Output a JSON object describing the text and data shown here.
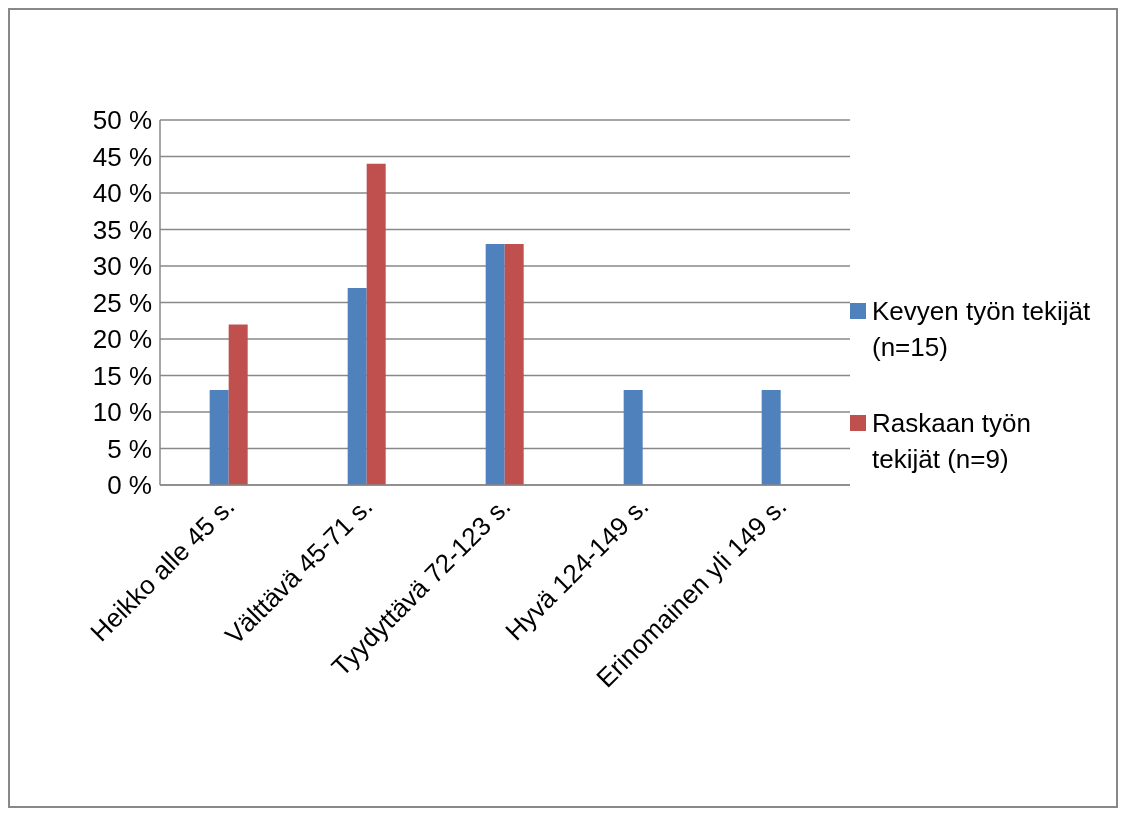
{
  "chart_data": {
    "type": "bar",
    "categories": [
      "Heikko alle 45 s.",
      "Välttävä 45-71 s.",
      "Tyydyttävä 72-123 s.",
      "Hyvä 124-149 s.",
      "Erinomainen yli 149 s."
    ],
    "series": [
      {
        "name": "Kevyen työn tekijät (n=15)",
        "color": "#4f81bd",
        "values": [
          13,
          27,
          33,
          13,
          13
        ]
      },
      {
        "name": "Raskaan työn tekijät (n=9)",
        "color": "#c0504d",
        "values": [
          22,
          44,
          33,
          0,
          0
        ]
      }
    ],
    "ylim": [
      0,
      50
    ],
    "yticks": [
      {
        "value": 0,
        "label": "0 %"
      },
      {
        "value": 5,
        "label": "5 %"
      },
      {
        "value": 10,
        "label": "10 %"
      },
      {
        "value": 15,
        "label": "15 %"
      },
      {
        "value": 20,
        "label": "20 %"
      },
      {
        "value": 25,
        "label": "25 %"
      },
      {
        "value": 30,
        "label": "30 %"
      },
      {
        "value": 35,
        "label": "35 %"
      },
      {
        "value": 40,
        "label": "40 %"
      },
      {
        "value": 45,
        "label": "45 %"
      },
      {
        "value": 50,
        "label": "50 %"
      }
    ],
    "grid": "y",
    "legend": "right"
  }
}
